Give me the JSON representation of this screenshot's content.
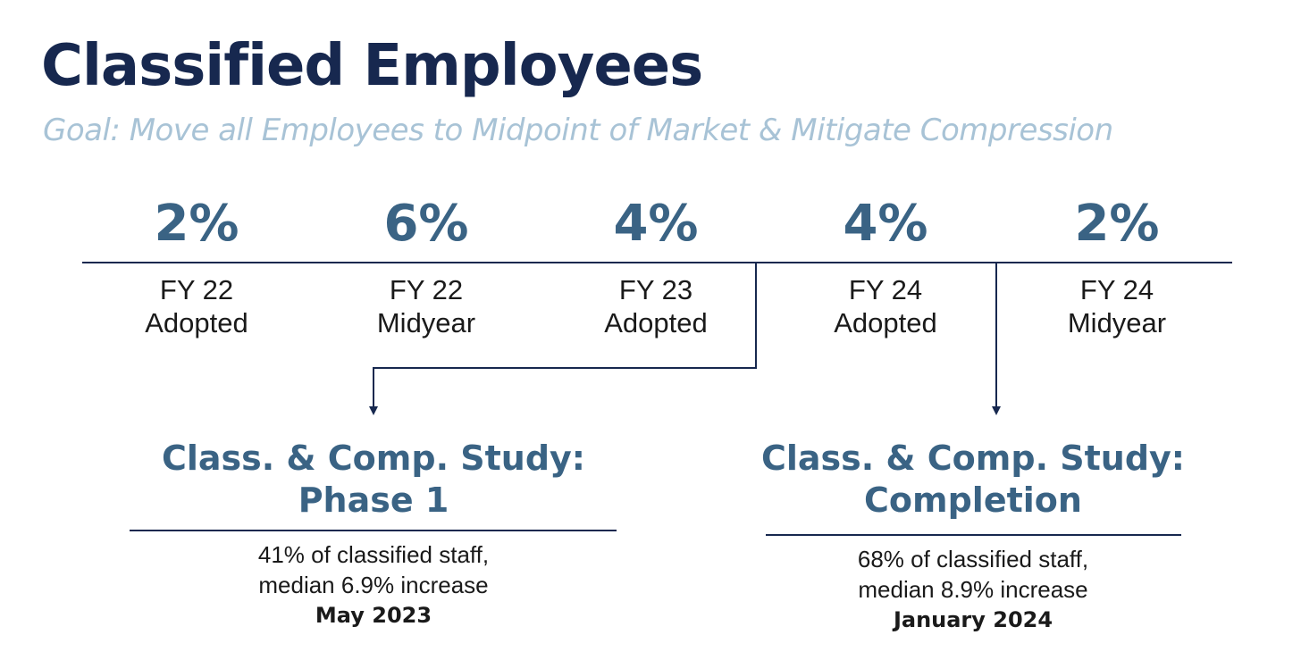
{
  "title": "Classified Employees",
  "subtitle": "Goal: Move all Employees to Midpoint of Market & Mitigate Compression",
  "timeline": [
    {
      "percent": "2%",
      "year": "FY 22",
      "stage": "Adopted"
    },
    {
      "percent": "6%",
      "year": "FY 22",
      "stage": "Midyear"
    },
    {
      "percent": "4%",
      "year": "FY 23",
      "stage": "Adopted"
    },
    {
      "percent": "4%",
      "year": "FY 24",
      "stage": "Adopted"
    },
    {
      "percent": "2%",
      "year": "FY 24",
      "stage": "Midyear"
    }
  ],
  "studies": [
    {
      "title_line1": "Class. & Comp. Study:",
      "title_line2": "Phase 1",
      "detail_line1": "41% of classified staff,",
      "detail_line2": "median 6.9% increase",
      "date": "May 2023"
    },
    {
      "title_line1": "Class. & Comp. Study:",
      "title_line2": "Completion",
      "detail_line1": "68% of classified staff,",
      "detail_line2": "median 8.9% increase",
      "date": "January 2024"
    }
  ],
  "colors": {
    "title": "#17284f",
    "subtitle": "#a8c3d6",
    "accent": "#3a6384",
    "line": "#17284f",
    "text": "#1a1a1a"
  }
}
